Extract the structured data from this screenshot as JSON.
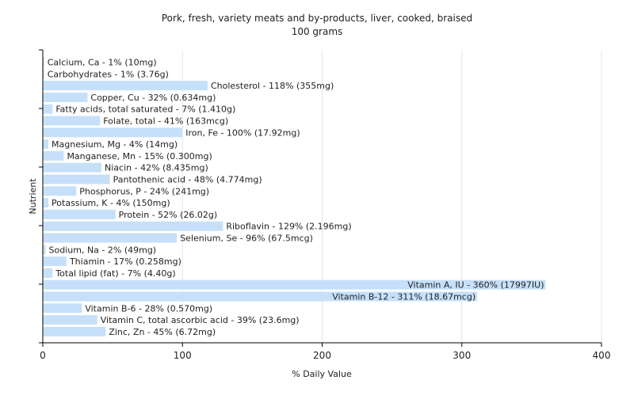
{
  "chart_data": {
    "type": "bar",
    "orientation": "horizontal",
    "title": "Pork, fresh, variety meats and by-products, liver, cooked, braised",
    "subtitle": "100 grams",
    "xlabel": "% Daily Value",
    "ylabel": "Nutrient",
    "xlim": [
      0,
      400
    ],
    "xticks": [
      "0",
      "100",
      "200",
      "300",
      "400"
    ],
    "grid": true,
    "bar_color": "#c6e0fa",
    "categories": [
      "Calcium, Ca - 1% (10mg)",
      "Carbohydrates - 1% (3.76g)",
      "Cholesterol - 118% (355mg)",
      "Copper, Cu - 32% (0.634mg)",
      "Fatty acids, total saturated - 7% (1.410g)",
      "Folate, total - 41% (163mcg)",
      "Iron, Fe - 100% (17.92mg)",
      "Magnesium, Mg - 4% (14mg)",
      "Manganese, Mn - 15% (0.300mg)",
      "Niacin - 42% (8.435mg)",
      "Pantothenic acid - 48% (4.774mg)",
      "Phosphorus, P - 24% (241mg)",
      "Potassium, K - 4% (150mg)",
      "Protein - 52% (26.02g)",
      "Riboflavin - 129% (2.196mg)",
      "Selenium, Se - 96% (67.5mcg)",
      "Sodium, Na - 2% (49mg)",
      "Thiamin - 17% (0.258mg)",
      "Total lipid (fat) - 7% (4.40g)",
      "Vitamin A, IU - 360% (17997IU)",
      "Vitamin B-12 - 311% (18.67mcg)",
      "Vitamin B-6 - 28% (0.570mg)",
      "Vitamin C, total ascorbic acid - 39% (23.6mg)",
      "Zinc, Zn - 45% (6.72mg)"
    ],
    "values": [
      1,
      1,
      118,
      32,
      7,
      41,
      100,
      4,
      15,
      42,
      48,
      24,
      4,
      52,
      129,
      96,
      2,
      17,
      7,
      360,
      311,
      28,
      39,
      45
    ]
  }
}
